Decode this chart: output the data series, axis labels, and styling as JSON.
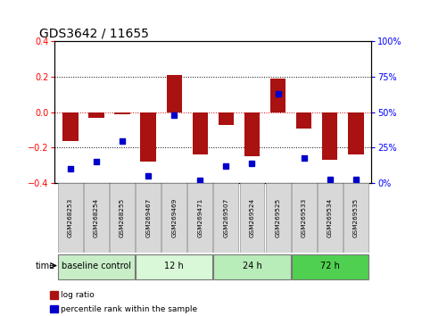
{
  "title": "GDS3642 / 11655",
  "samples": [
    "GSM268253",
    "GSM268254",
    "GSM268255",
    "GSM269467",
    "GSM269469",
    "GSM269471",
    "GSM269507",
    "GSM269524",
    "GSM269525",
    "GSM269533",
    "GSM269534",
    "GSM269535"
  ],
  "log_ratio": [
    -0.16,
    -0.03,
    -0.01,
    -0.28,
    0.21,
    -0.24,
    -0.07,
    -0.25,
    0.19,
    -0.09,
    -0.27,
    -0.24
  ],
  "percentile_rank": [
    10,
    15,
    30,
    5,
    48,
    2,
    12,
    14,
    63,
    18,
    3,
    3
  ],
  "group_configs": [
    {
      "start": 0,
      "end": 3,
      "color": "#c8eec8",
      "label": "baseline control"
    },
    {
      "start": 3,
      "end": 6,
      "color": "#d8f8d8",
      "label": "12 h"
    },
    {
      "start": 6,
      "end": 9,
      "color": "#b8ecb8",
      "label": "24 h"
    },
    {
      "start": 9,
      "end": 12,
      "color": "#50d050",
      "label": "72 h"
    }
  ],
  "ylim_left": [
    -0.4,
    0.4
  ],
  "ylim_right": [
    0,
    100
  ],
  "bar_color": "#aa1111",
  "dot_color": "#0000cc",
  "bg_color": "#ffffff",
  "cell_color": "#d8d8d8",
  "cell_edge_color": "#999999",
  "time_label": "time",
  "legend_bar_label": "log ratio",
  "legend_dot_label": "percentile rank within the sample"
}
